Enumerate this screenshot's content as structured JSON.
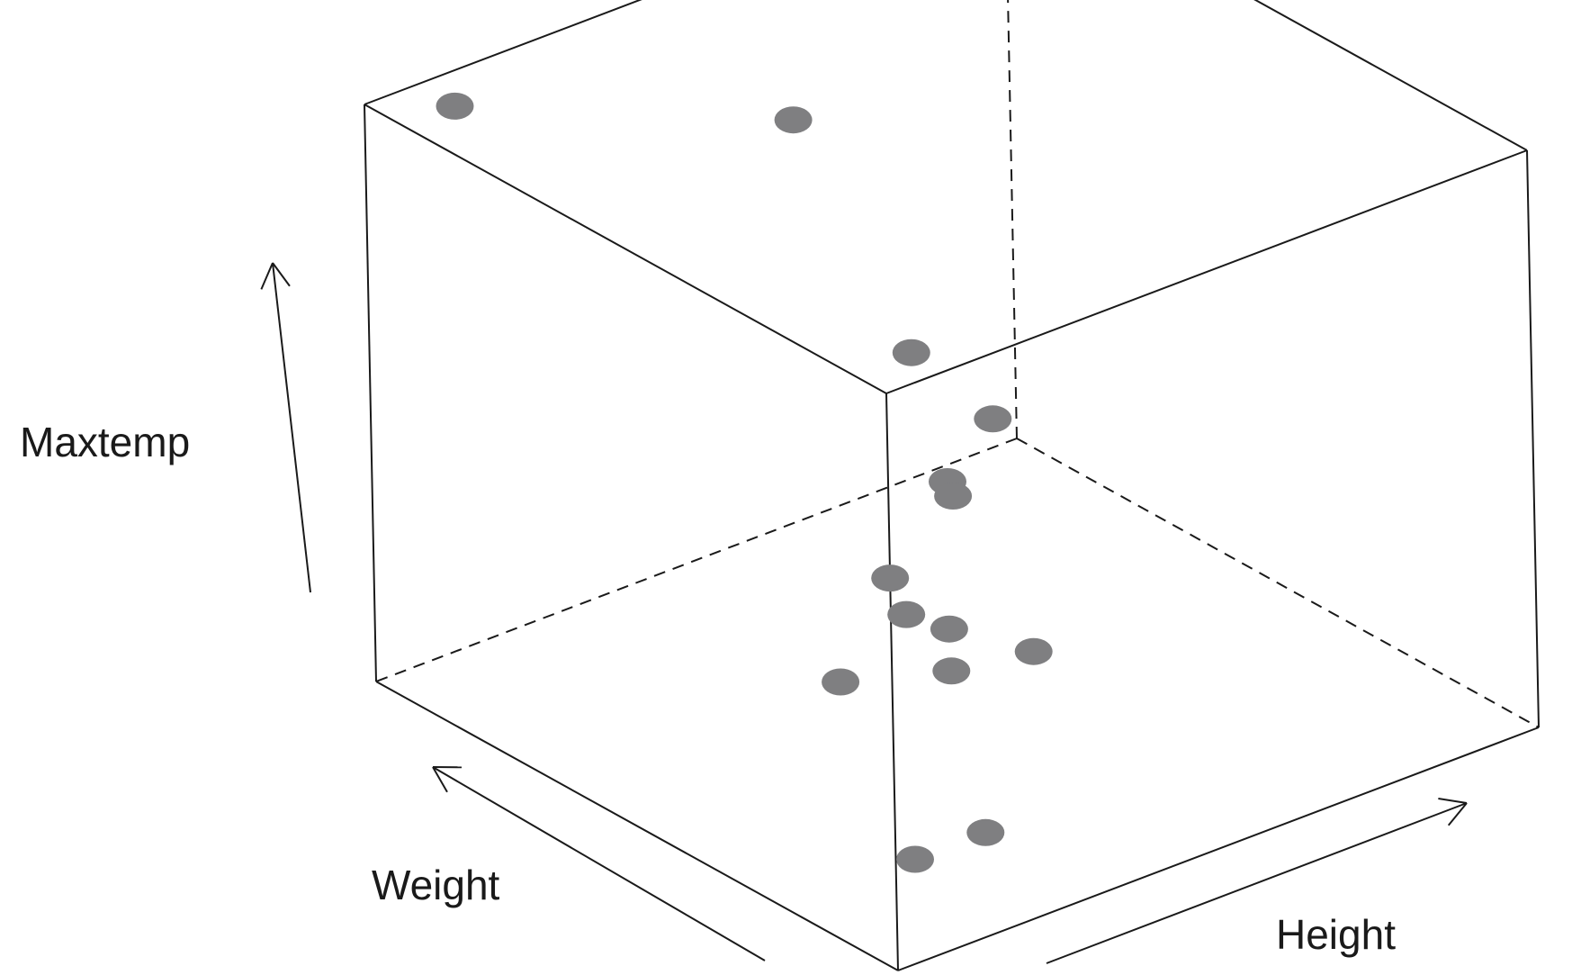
{
  "chart_data": {
    "type": "scatter",
    "projection": "3d",
    "title": "",
    "axes": {
      "x": {
        "label": "Height"
      },
      "y": {
        "label": "Weight"
      },
      "z": {
        "label": "Maxtemp"
      }
    },
    "box": true,
    "grid": false,
    "legend": "none",
    "point_color": "#7f7f81",
    "note_on_units": "No tick values are printed; points are given in normalized axis units from 0 (low) to 1 (high) along each arrow direction.",
    "points": [
      {
        "x": 0.03,
        "y": 0.0,
        "z": 0.18
      },
      {
        "x": 0.14,
        "y": 0.0,
        "z": 0.18
      },
      {
        "x": 0.0,
        "y": 0.1,
        "z": 0.45
      },
      {
        "x": 0.22,
        "y": 0.0,
        "z": 0.46
      },
      {
        "x": 0.14,
        "y": 0.06,
        "z": 0.43
      },
      {
        "x": 0.17,
        "y": 0.1,
        "z": 0.47
      },
      {
        "x": 0.0,
        "y": 0.0,
        "z": 0.68
      },
      {
        "x": 0.1,
        "y": 0.01,
        "z": 0.8
      },
      {
        "x": 0.1,
        "y": 0.0,
        "z": 0.78
      },
      {
        "x": 0.18,
        "y": 0.02,
        "z": 0.87
      },
      {
        "x": 0.12,
        "y": 0.1,
        "z": 0.97
      },
      {
        "x": 0.4,
        "y": 0.67,
        "z": 0.97
      },
      {
        "x": 0.1,
        "y": 0.95,
        "z": 0.98
      },
      {
        "x": 0.04,
        "y": 0.02,
        "z": 0.59
      }
    ]
  }
}
